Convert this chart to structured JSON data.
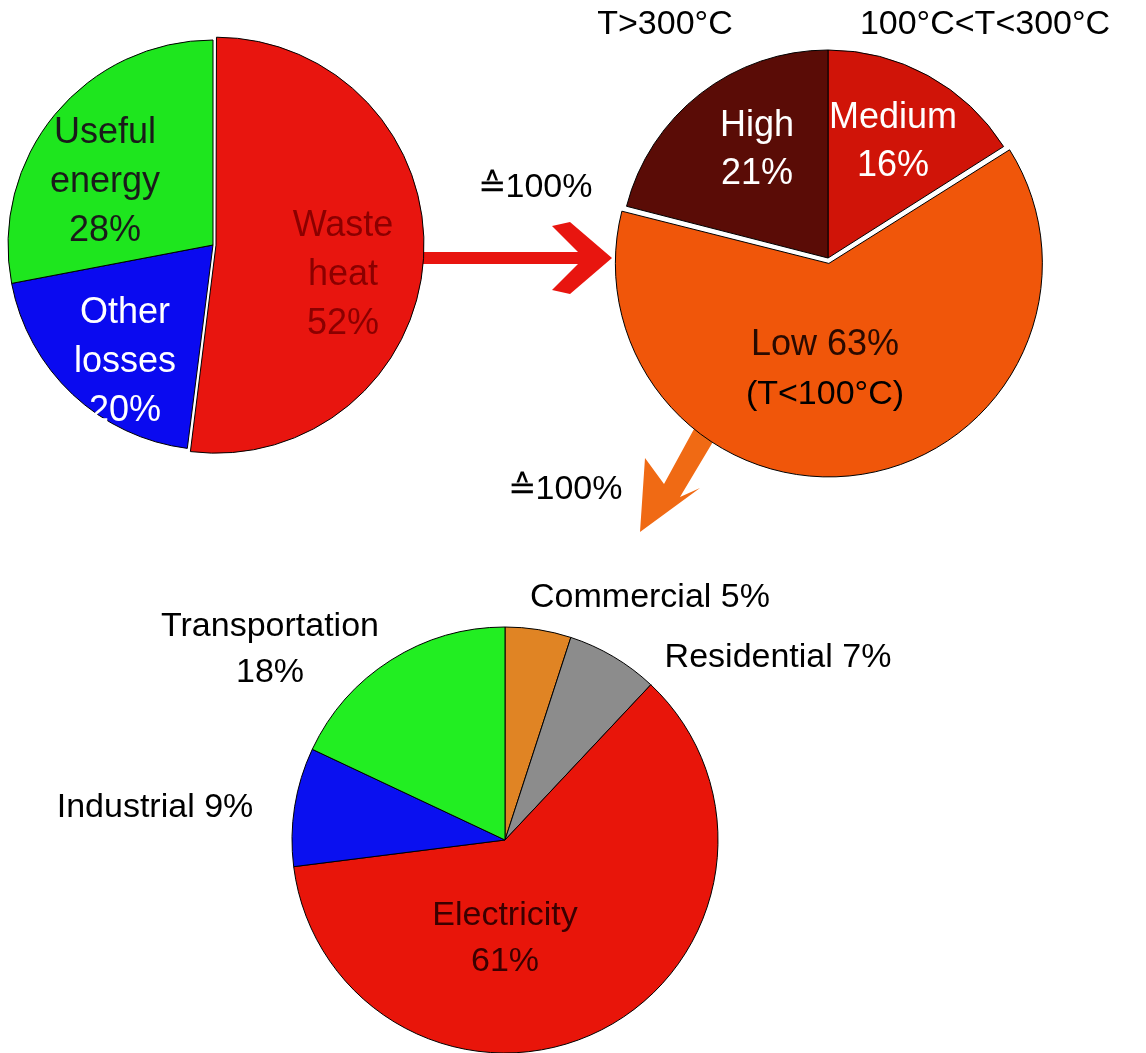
{
  "chart_data": [
    {
      "type": "pie",
      "categories": [
        "Waste heat",
        "Other losses",
        "Useful energy"
      ],
      "values": [
        52,
        20,
        28
      ],
      "colors": [
        "#e8150f",
        "#0a0af0",
        "#1ee61e"
      ],
      "value_labels": [
        "52%",
        "20%",
        "28%"
      ],
      "annotations": [
        "≙100%"
      ]
    },
    {
      "type": "pie",
      "categories": [
        "Medium",
        "Low",
        "High"
      ],
      "values": [
        16,
        63,
        21
      ],
      "colors": [
        "#d01408",
        "#f0560a",
        "#5a0c06"
      ],
      "value_labels": [
        "16%",
        "63%",
        "21%"
      ],
      "annotations": [
        "T>300°C",
        "100°C<T<300°C",
        "(T<100°C)",
        "≙100%"
      ]
    },
    {
      "type": "pie",
      "categories": [
        "Commercial",
        "Residential",
        "Electricity",
        "Industrial",
        "Transportation"
      ],
      "values": [
        5,
        7,
        61,
        9,
        18
      ],
      "colors": [
        "#e08424",
        "#8c8c8c",
        "#e8150a",
        "#0a10f0",
        "#22ee22"
      ],
      "value_labels": [
        "5%",
        "7%",
        "61%",
        "9%",
        "18%"
      ]
    }
  ]
}
